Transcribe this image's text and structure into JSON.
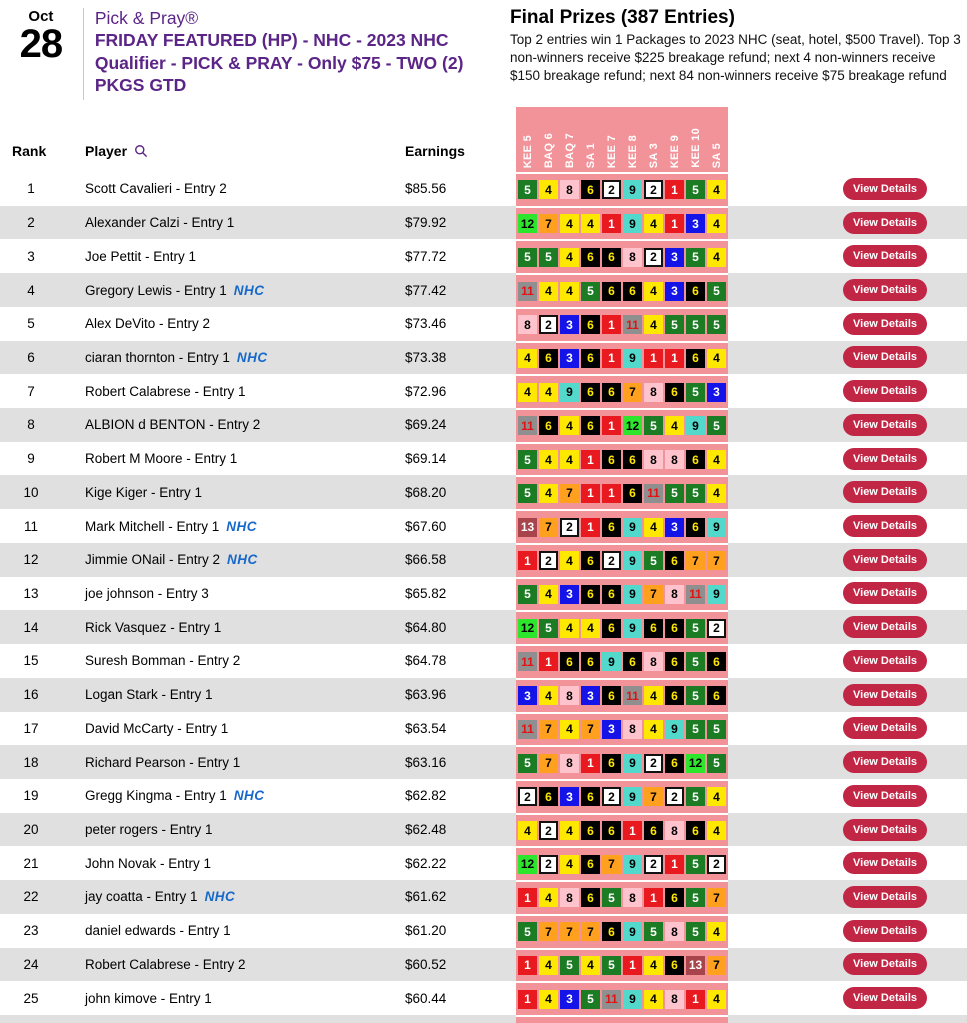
{
  "header": {
    "date_month": "Oct",
    "date_day": "28",
    "title_line1": "Pick & Pray®",
    "title_bold": "FRIDAY FEATURED (HP) - NHC - 2023 NHC Qualifier - PICK & PRAY - Only $75 - TWO (2) PKGS GTD",
    "prizes_title": "Final Prizes (387 Entries)",
    "prizes_text": "Top 2 entries win 1 Packages to 2023 NHC (seat, hotel, $500 Travel). Top 3 non-winners receive $225 breakage refund; next 4 non-winners receive $150 breakage refund; next 84 non-winners receive $75 breakage refund"
  },
  "table": {
    "columns": {
      "rank": "Rank",
      "player": "Player",
      "earnings": "Earnings"
    },
    "race_columns": [
      "KEE 5",
      "BAQ 6",
      "BAQ 7",
      "SA 1",
      "KEE 7",
      "KEE 8",
      "SA 3",
      "KEE 9",
      "KEE 10",
      "SA 5"
    ],
    "view_details_label": "View Details",
    "nhc_badge_label": "NHC",
    "rows": [
      {
        "rank": 1,
        "player": "Scott Cavalieri - Entry 2",
        "nhc": false,
        "earnings": "$85.56",
        "picks": [
          5,
          4,
          8,
          6,
          2,
          9,
          2,
          1,
          5,
          4
        ]
      },
      {
        "rank": 2,
        "player": "Alexander Calzi - Entry 1",
        "nhc": false,
        "earnings": "$79.92",
        "picks": [
          12,
          7,
          4,
          4,
          1,
          9,
          4,
          1,
          3,
          4
        ]
      },
      {
        "rank": 3,
        "player": "Joe Pettit - Entry 1",
        "nhc": false,
        "earnings": "$77.72",
        "picks": [
          5,
          5,
          4,
          6,
          6,
          8,
          2,
          3,
          5,
          4
        ]
      },
      {
        "rank": 4,
        "player": "Gregory Lewis - Entry 1",
        "nhc": true,
        "earnings": "$77.42",
        "picks": [
          11,
          4,
          4,
          5,
          6,
          6,
          4,
          3,
          6,
          5
        ]
      },
      {
        "rank": 5,
        "player": "Alex DeVito - Entry 2",
        "nhc": false,
        "earnings": "$73.46",
        "picks": [
          8,
          2,
          3,
          6,
          1,
          11,
          4,
          5,
          5,
          5
        ]
      },
      {
        "rank": 6,
        "player": "ciaran thornton - Entry 1",
        "nhc": true,
        "earnings": "$73.38",
        "picks": [
          4,
          6,
          3,
          6,
          1,
          9,
          1,
          1,
          6,
          4
        ]
      },
      {
        "rank": 7,
        "player": "Robert Calabrese - Entry 1",
        "nhc": false,
        "earnings": "$72.96",
        "picks": [
          4,
          4,
          9,
          6,
          6,
          7,
          8,
          6,
          5,
          3
        ]
      },
      {
        "rank": 8,
        "player": "ALBION d BENTON - Entry 2",
        "nhc": false,
        "earnings": "$69.24",
        "picks": [
          11,
          6,
          4,
          6,
          1,
          12,
          5,
          4,
          9,
          5
        ]
      },
      {
        "rank": 9,
        "player": "Robert M Moore - Entry 1",
        "nhc": false,
        "earnings": "$69.14",
        "picks": [
          5,
          4,
          4,
          1,
          6,
          6,
          8,
          8,
          6,
          4
        ]
      },
      {
        "rank": 10,
        "player": "Kige Kiger - Entry 1",
        "nhc": false,
        "earnings": "$68.20",
        "picks": [
          5,
          4,
          7,
          1,
          1,
          6,
          11,
          5,
          5,
          4
        ]
      },
      {
        "rank": 11,
        "player": "Mark Mitchell - Entry 1",
        "nhc": true,
        "earnings": "$67.60",
        "picks": [
          13,
          7,
          2,
          1,
          6,
          9,
          4,
          3,
          6,
          9
        ]
      },
      {
        "rank": 12,
        "player": "Jimmie ONail - Entry 2",
        "nhc": true,
        "earnings": "$66.58",
        "picks": [
          1,
          2,
          4,
          6,
          2,
          9,
          5,
          6,
          7,
          7
        ]
      },
      {
        "rank": 13,
        "player": "joe johnson - Entry 3",
        "nhc": false,
        "earnings": "$65.82",
        "picks": [
          5,
          4,
          3,
          6,
          6,
          9,
          7,
          8,
          11,
          9
        ]
      },
      {
        "rank": 14,
        "player": "Rick Vasquez - Entry 1",
        "nhc": false,
        "earnings": "$64.80",
        "picks": [
          12,
          5,
          4,
          4,
          6,
          9,
          6,
          6,
          5,
          2
        ]
      },
      {
        "rank": 15,
        "player": "Suresh Bomman - Entry 2",
        "nhc": false,
        "earnings": "$64.78",
        "picks": [
          11,
          1,
          6,
          6,
          9,
          6,
          8,
          6,
          5,
          6
        ]
      },
      {
        "rank": 16,
        "player": "Logan Stark - Entry 1",
        "nhc": false,
        "earnings": "$63.96",
        "picks": [
          3,
          4,
          8,
          3,
          6,
          11,
          4,
          6,
          5,
          6
        ]
      },
      {
        "rank": 17,
        "player": "David McCarty - Entry 1",
        "nhc": false,
        "earnings": "$63.54",
        "picks": [
          11,
          7,
          4,
          7,
          3,
          8,
          4,
          9,
          5,
          5
        ]
      },
      {
        "rank": 18,
        "player": "Richard Pearson - Entry 1",
        "nhc": false,
        "earnings": "$63.16",
        "picks": [
          5,
          7,
          8,
          1,
          6,
          9,
          2,
          6,
          12,
          5
        ]
      },
      {
        "rank": 19,
        "player": "Gregg Kingma - Entry 1",
        "nhc": true,
        "earnings": "$62.82",
        "picks": [
          2,
          6,
          3,
          6,
          2,
          9,
          7,
          2,
          5,
          4
        ]
      },
      {
        "rank": 20,
        "player": "peter rogers - Entry 1",
        "nhc": false,
        "earnings": "$62.48",
        "picks": [
          4,
          2,
          4,
          6,
          6,
          1,
          6,
          8,
          6,
          4
        ]
      },
      {
        "rank": 21,
        "player": "John Novak - Entry 1",
        "nhc": false,
        "earnings": "$62.22",
        "picks": [
          12,
          2,
          4,
          6,
          7,
          9,
          2,
          1,
          5,
          2
        ]
      },
      {
        "rank": 22,
        "player": "jay coatta - Entry 1",
        "nhc": true,
        "earnings": "$61.62",
        "picks": [
          1,
          4,
          8,
          6,
          5,
          8,
          1,
          6,
          5,
          7
        ]
      },
      {
        "rank": 23,
        "player": "daniel edwards - Entry 1",
        "nhc": false,
        "earnings": "$61.20",
        "picks": [
          5,
          7,
          7,
          7,
          6,
          9,
          5,
          8,
          5,
          4
        ]
      },
      {
        "rank": 24,
        "player": "Robert Calabrese - Entry 2",
        "nhc": false,
        "earnings": "$60.52",
        "picks": [
          1,
          4,
          5,
          4,
          5,
          1,
          4,
          6,
          13,
          7
        ]
      },
      {
        "rank": 25,
        "player": "john kimove - Entry 1",
        "nhc": false,
        "earnings": "$60.44",
        "picks": [
          1,
          4,
          3,
          5,
          11,
          9,
          4,
          8,
          1,
          4
        ]
      }
    ]
  },
  "colors": {
    "accent_purple": "#5b2487",
    "nhc_blue": "#1668c9",
    "button_red": "#c22645",
    "picks_strip_pink": "#f19399",
    "alt_row_grey": "#e0e0e0",
    "saddle_cloth": {
      "1": {
        "bg": "#e8191f",
        "fg": "#ffffff"
      },
      "2": {
        "bg": "#ffffff",
        "fg": "#000000",
        "border": "#111111"
      },
      "3": {
        "bg": "#1414e8",
        "fg": "#ffffff"
      },
      "4": {
        "bg": "#ffe800",
        "fg": "#000000"
      },
      "5": {
        "bg": "#1c7c24",
        "fg": "#ffffff"
      },
      "6": {
        "bg": "#000000",
        "fg": "#ffe800"
      },
      "7": {
        "bg": "#ffa01e",
        "fg": "#000000"
      },
      "8": {
        "bg": "#ffc3cd",
        "fg": "#000000"
      },
      "9": {
        "bg": "#53d9cb",
        "fg": "#000000"
      },
      "11": {
        "bg": "#8f8f8f",
        "fg": "#e01414"
      },
      "12": {
        "bg": "#2ee52e",
        "fg": "#000000"
      },
      "13": {
        "bg": "#a8444c",
        "fg": "#ffffff"
      }
    }
  }
}
